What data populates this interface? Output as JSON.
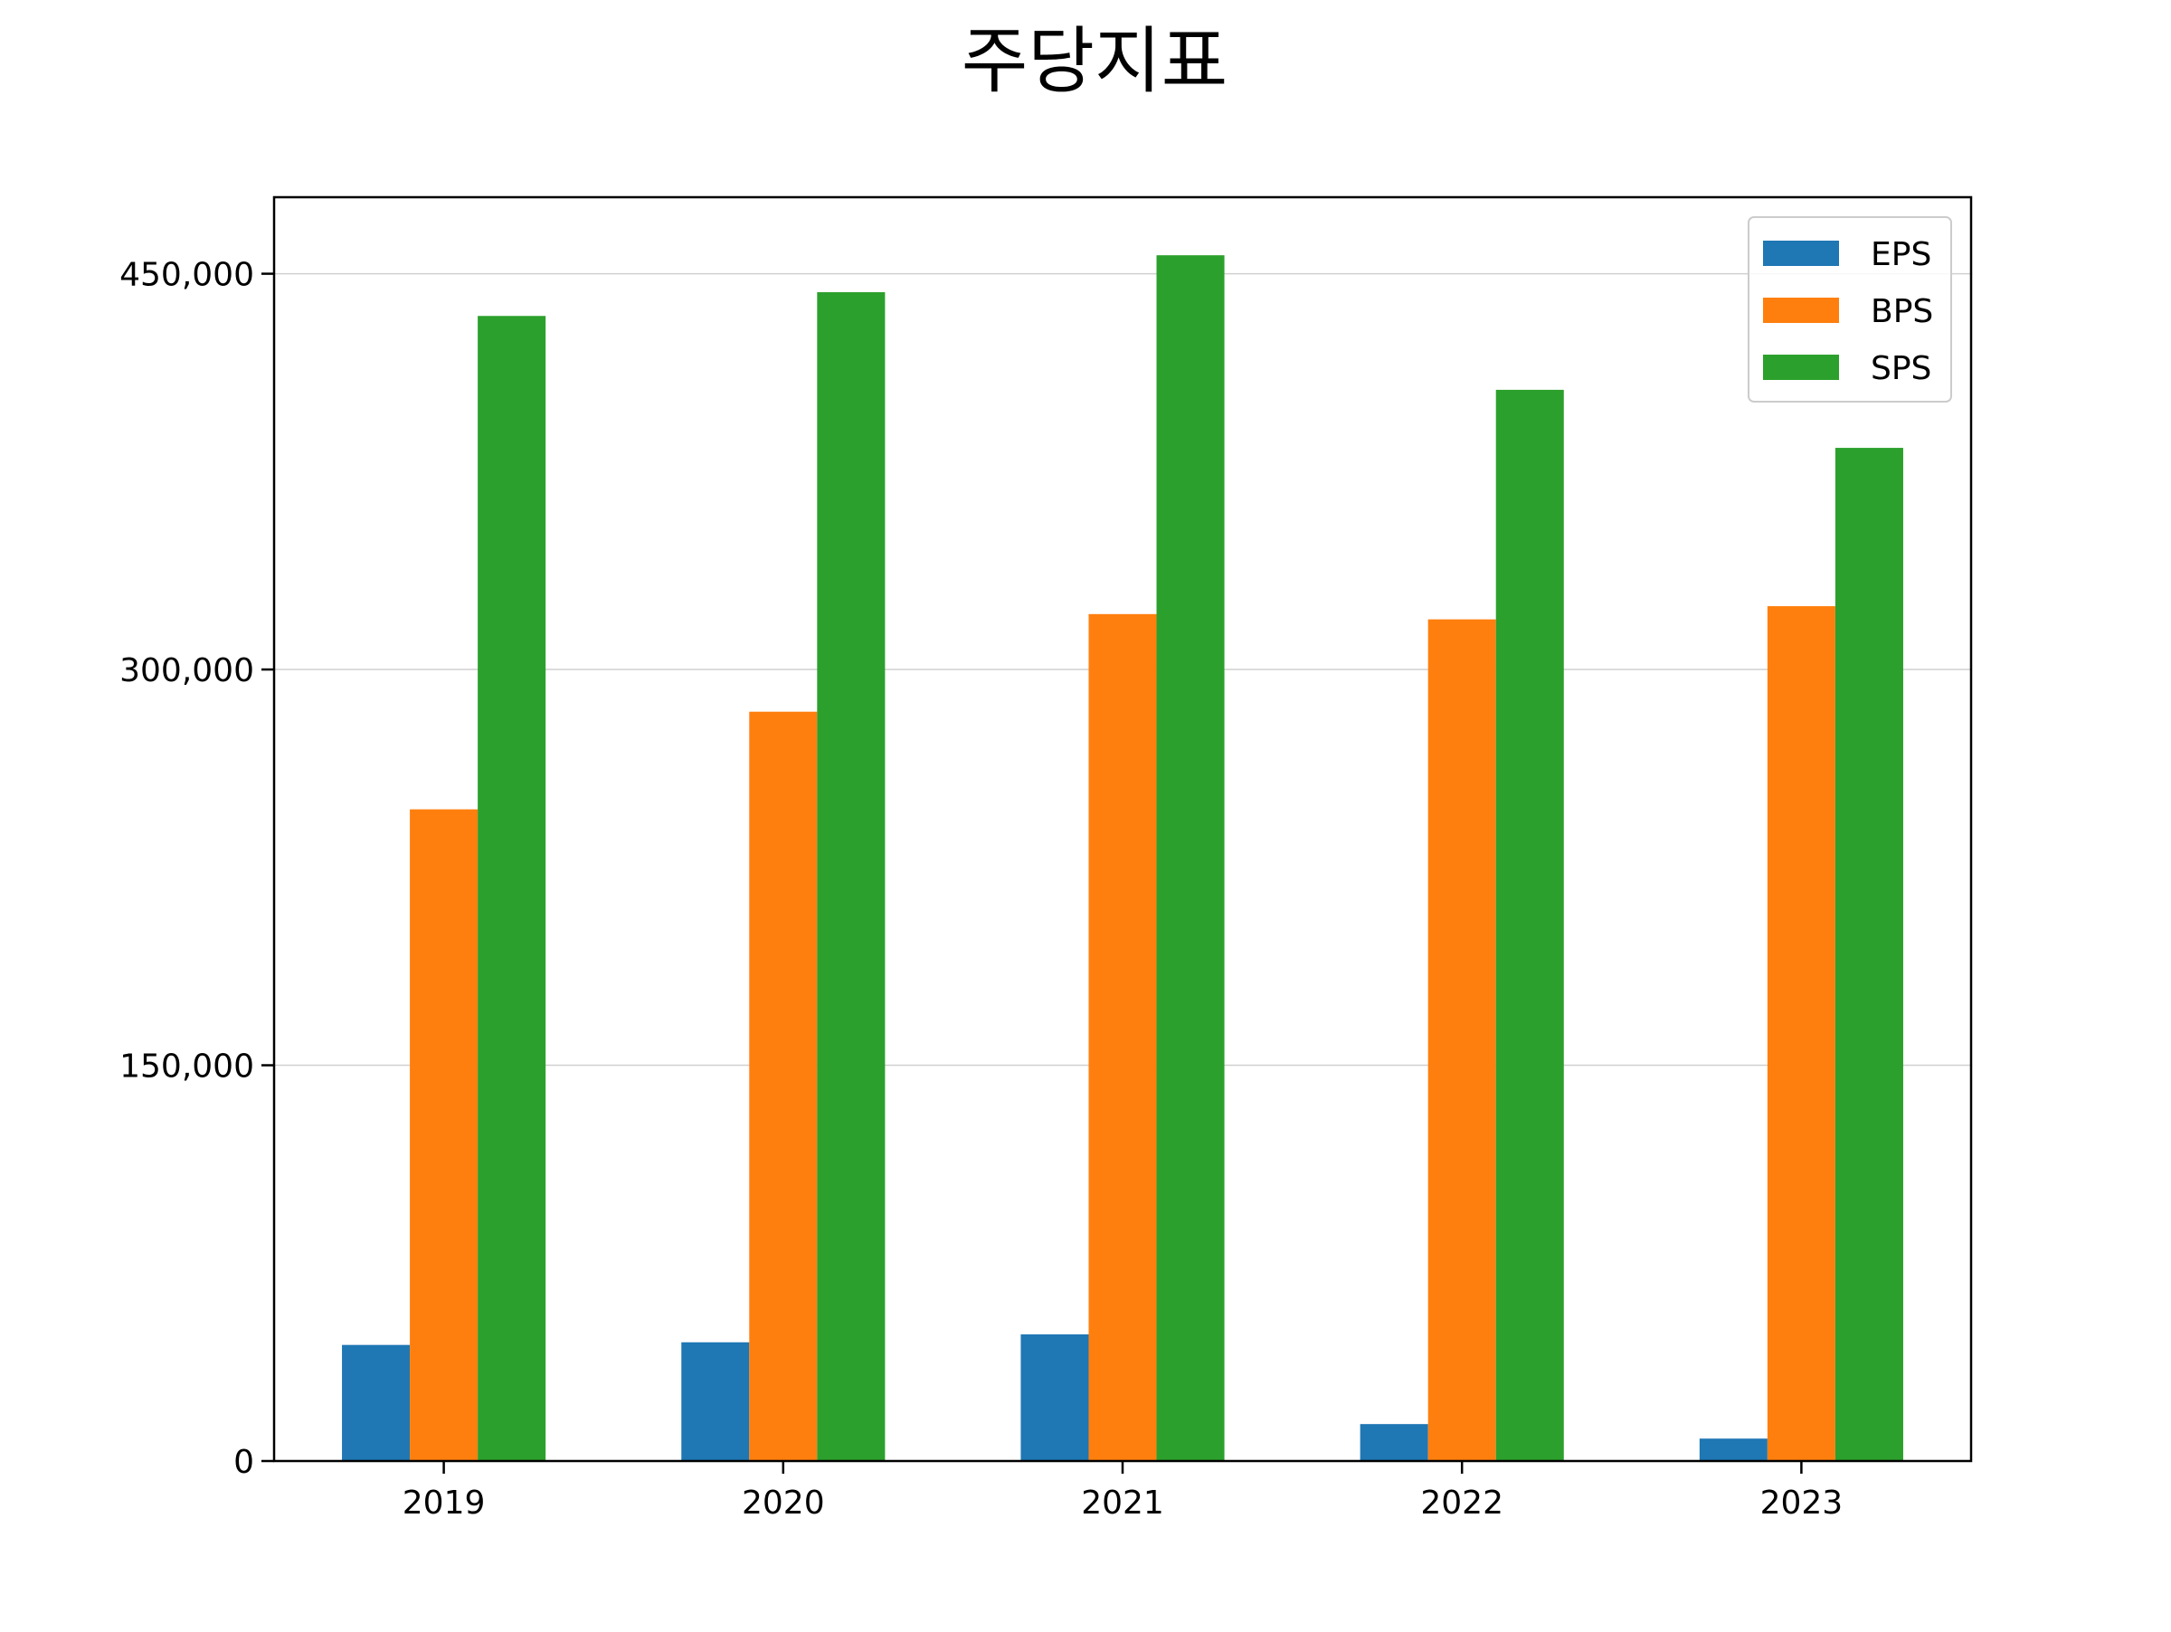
{
  "chart_data": {
    "type": "bar",
    "title": "주당지표",
    "xlabel": "",
    "ylabel": "",
    "categories": [
      "2019",
      "2020",
      "2021",
      "2022",
      "2023"
    ],
    "series": [
      {
        "name": "EPS",
        "color": "#1f77b4",
        "values": [
          44000,
          45000,
          48000,
          14000,
          8500
        ]
      },
      {
        "name": "BPS",
        "color": "#ff7f0e",
        "values": [
          247000,
          284000,
          321000,
          319000,
          324000
        ]
      },
      {
        "name": "SPS",
        "color": "#2ca02c",
        "values": [
          434000,
          443000,
          457000,
          406000,
          384000
        ]
      }
    ],
    "ylim": [
      0,
      479000
    ],
    "yticks": [
      0,
      150000,
      300000,
      450000
    ],
    "ytick_labels": [
      "0",
      "150,000",
      "300,000",
      "450,000"
    ],
    "grid": "y",
    "legend": "top-right"
  }
}
